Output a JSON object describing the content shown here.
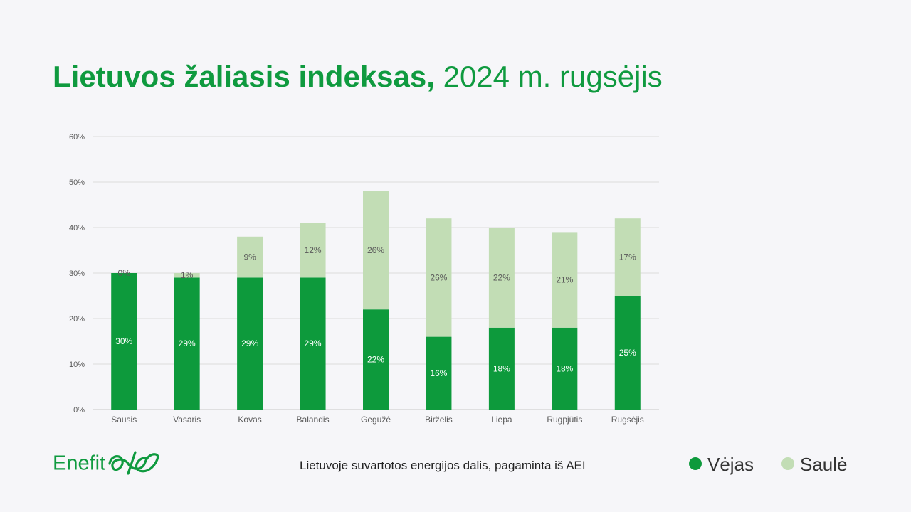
{
  "title": {
    "bold": "Lietuvos žaliasis indeksas,",
    "rest": "2024 m. rugsėjis"
  },
  "caption": "Lietuvoje suvartotos energijos dalis, pagaminta iš AEI",
  "logo": {
    "text": "Enefit",
    "mark_icon": "enefit-swirl-logo"
  },
  "colors": {
    "wind": "#0d9a3c",
    "sun": "#c2ddb5",
    "title": "#0f9a3f",
    "grid": "#dcdcdc"
  },
  "legend": [
    {
      "name": "Vėjas",
      "color": "#0d9a3c"
    },
    {
      "name": "Saulė",
      "color": "#c2ddb5"
    }
  ],
  "chart_data": {
    "type": "bar",
    "stacked": true,
    "categories": [
      "Sausis",
      "Vasaris",
      "Kovas",
      "Balandis",
      "Gegužė",
      "Birželis",
      "Liepa",
      "Rugpjūtis",
      "Rugsėjis"
    ],
    "series": [
      {
        "name": "Vėjas",
        "values": [
          30,
          29,
          29,
          29,
          22,
          16,
          18,
          18,
          25
        ]
      },
      {
        "name": "Saulė",
        "values": [
          0,
          1,
          9,
          12,
          26,
          26,
          22,
          21,
          17
        ]
      }
    ],
    "value_labels": {
      "Vėjas": [
        "30%",
        "29%",
        "29%",
        "29%",
        "22%",
        "16%",
        "18%",
        "18%",
        "25%"
      ],
      "Saulė": [
        "0%",
        "1%",
        "9%",
        "12%",
        "26%",
        "26%",
        "22%",
        "21%",
        "17%"
      ]
    },
    "ylim": [
      0,
      60
    ],
    "yticks": [
      0,
      10,
      20,
      30,
      40,
      50,
      60
    ],
    "ytick_labels": [
      "0%",
      "10%",
      "20%",
      "30%",
      "40%",
      "50%",
      "60%"
    ],
    "grid": true,
    "legend_position": "bottom-right"
  }
}
